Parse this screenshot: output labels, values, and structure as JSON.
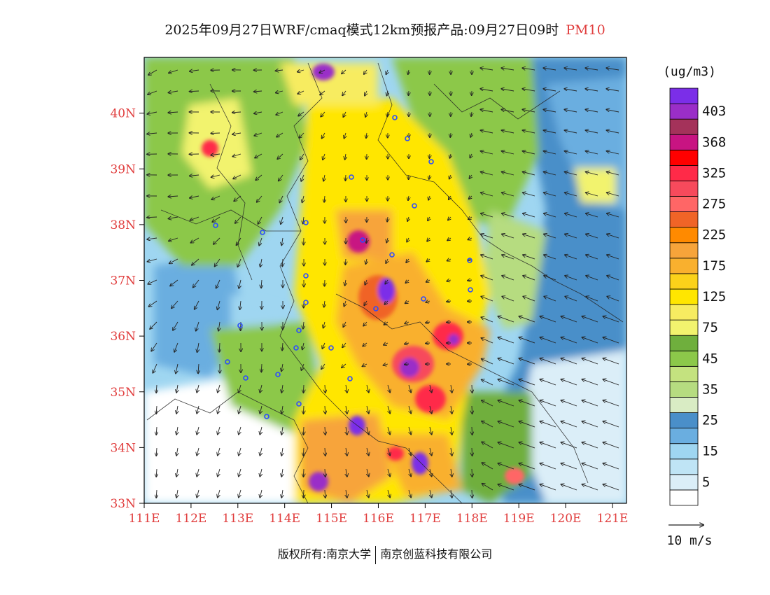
{
  "header": {
    "title": "2025年09月27日WRF/cmaq模式12km预报产品:09月27日09时",
    "pollutant": "PM10"
  },
  "map": {
    "lon_labels": [
      "111E",
      "112E",
      "113E",
      "114E",
      "115E",
      "116E",
      "117E",
      "118E",
      "119E",
      "120E",
      "121E"
    ],
    "lat_labels": [
      "33N",
      "34N",
      "35N",
      "36N",
      "37N",
      "38N",
      "39N",
      "40N"
    ],
    "lon_range": [
      111,
      121.3
    ],
    "lat_range": [
      33,
      41
    ]
  },
  "legend": {
    "unit": "(ug/m3)",
    "bins": [
      {
        "label": "",
        "color": "#ffffff"
      },
      {
        "label": "5",
        "color": "#dbeef8"
      },
      {
        "label": "",
        "color": "#bfe4f5"
      },
      {
        "label": "15",
        "color": "#9fd6f1"
      },
      {
        "label": "",
        "color": "#6aaee0"
      },
      {
        "label": "25",
        "color": "#4a8fc9"
      },
      {
        "label": "",
        "color": "#d9ecc4"
      },
      {
        "label": "35",
        "color": "#b6dc80"
      },
      {
        "label": "",
        "color": "#c4e27f"
      },
      {
        "label": "45",
        "color": "#8cc84a"
      },
      {
        "label": "",
        "color": "#6faf3d"
      },
      {
        "label": "75",
        "color": "#f2f36e"
      },
      {
        "label": "",
        "color": "#f7ec61"
      },
      {
        "label": "125",
        "color": "#ffe600"
      },
      {
        "label": "",
        "color": "#fbd21a"
      },
      {
        "label": "175",
        "color": "#f9b02e"
      },
      {
        "label": "",
        "color": "#f7a43a"
      },
      {
        "label": "225",
        "color": "#ff8a00"
      },
      {
        "label": "",
        "color": "#f06427"
      },
      {
        "label": "275",
        "color": "#ff6666"
      },
      {
        "label": "",
        "color": "#f74a5c"
      },
      {
        "label": "325",
        "color": "#ff2a48"
      },
      {
        "label": "",
        "color": "#ff0000"
      },
      {
        "label": "368",
        "color": "#c81482"
      },
      {
        "label": "",
        "color": "#a4325a"
      },
      {
        "label": "403",
        "color": "#9a2ec8"
      },
      {
        "label": "",
        "color": "#7b2ee8"
      }
    ],
    "wind_scale_label": "10 m/s"
  },
  "footer": {
    "copyright_left": "版权所有:南京大学",
    "copyright_right": "南京创蓝科技有限公司"
  }
}
